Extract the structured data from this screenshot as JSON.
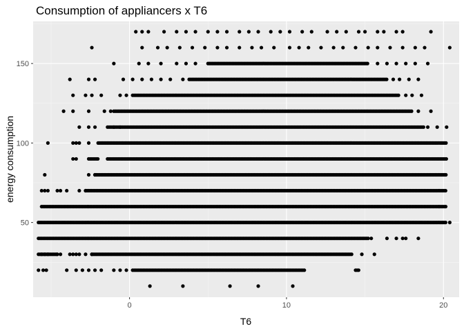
{
  "chart_data": {
    "type": "scatter",
    "title": "Consumption of appliancers x T6",
    "xlabel": "T6",
    "ylabel": "energy consumption",
    "xlim": [
      -6.14,
      21.0
    ],
    "ylim": [
      3.0,
      176.5
    ],
    "x_ticks": [
      0,
      10,
      20
    ],
    "x_tick_labels": [
      "0",
      "10",
      "20"
    ],
    "y_ticks": [
      50,
      100,
      150
    ],
    "y_tick_labels": [
      "50",
      "100",
      "150"
    ],
    "grid": true,
    "legend": "none",
    "point_color": "#000000",
    "panel_background": "#ebebeb",
    "series": [
      {
        "name": "",
        "bands": [
          {
            "y": 10,
            "x": [
              1.3,
              3.4,
              6.4,
              8.2,
              10.4
            ]
          },
          {
            "y": 20,
            "x": [
              -5.8,
              -5.5,
              -5.3,
              -4.0,
              -3.4,
              -3.0,
              -2.6,
              -2.2,
              -1.8,
              -1.0,
              -0.6,
              -0.2
            ],
            "runs": [
              [
                0.2,
                11.2
              ],
              [
                14.4,
                14.6
              ]
            ]
          },
          {
            "y": 30,
            "x": [
              -5.6,
              -5.4,
              -5.2,
              -4.6,
              -4.4,
              -3.8,
              -3.6,
              -3.4,
              -3.2,
              -2.8,
              -2.4
            ],
            "runs": [
              [
                -5.8,
                -4.6
              ],
              [
                -2.4,
                14.2
              ]
            ],
            "extra_x": [
              14.8,
              15.6
            ]
          },
          {
            "y": 40,
            "x": [
              15.4,
              16.4,
              17.0,
              17.4,
              17.6,
              18.4
            ],
            "runs": [
              [
                -5.8,
                15.2
              ]
            ]
          },
          {
            "y": 50,
            "x": [
              20.4
            ],
            "runs": [
              [
                -5.8,
                20.2
              ]
            ]
          },
          {
            "y": 60,
            "runs": [
              [
                -5.6,
                20.2
              ]
            ]
          },
          {
            "y": 70,
            "x": [
              -5.6,
              -5.4,
              -5.2,
              -4.6,
              -4.4,
              -4.0,
              -3.2,
              -2.8
            ],
            "runs": [
              [
                -2.8,
                20.2
              ]
            ]
          },
          {
            "y": 80,
            "x": [
              -5.4,
              -2.6,
              -2.2
            ],
            "runs": [
              [
                -2.2,
                20.2
              ]
            ]
          },
          {
            "y": 90,
            "x": [
              -3.6,
              -3.4
            ],
            "runs": [
              [
                -2.6,
                -2.0
              ],
              [
                -1.4,
                20.2
              ]
            ]
          },
          {
            "y": 100,
            "x": [
              -5.2,
              -3.6,
              -3.4,
              -3.2,
              -2.6
            ],
            "runs": [
              [
                -2.0,
                20.2
              ]
            ]
          },
          {
            "y": 110,
            "x": [
              -3.2,
              -2.6,
              -2.2,
              -1.0,
              -0.6
            ],
            "runs": [
              [
                -1.4,
                18.8
              ]
            ],
            "extra_x": [
              19.0,
              19.6,
              20.2
            ]
          },
          {
            "y": 120,
            "x": [
              -4.2,
              -3.6,
              -2.6,
              -1.6,
              -1.2
            ],
            "runs": [
              [
                -1.0,
                18.0
              ]
            ],
            "extra_x": [
              18.4,
              19.2
            ]
          },
          {
            "y": 130,
            "x": [
              -3.6,
              -2.8,
              -2.4,
              -1.8,
              -0.6,
              -0.2
            ],
            "runs": [
              [
                0.2,
                17.2
              ]
            ],
            "extra_x": [
              17.6,
              18.0,
              18.6
            ]
          },
          {
            "y": 140,
            "x": [
              -3.8,
              -2.6,
              -2.2,
              -0.4,
              0.2,
              0.8,
              1.4,
              2.0,
              2.6,
              3.4
            ],
            "runs": [
              [
                3.8,
                16.4
              ]
            ],
            "extra_x": [
              16.8,
              17.2,
              17.8,
              18.4
            ]
          },
          {
            "y": 150,
            "x": [
              -1.0,
              0.6,
              1.2,
              2.0,
              3.0,
              3.6,
              4.2
            ],
            "runs": [
              [
                5.0,
                15.2
              ]
            ],
            "extra_x": [
              15.8,
              16.4,
              17.0,
              17.6,
              18.2,
              19.0
            ]
          },
          {
            "y": 160,
            "x": [
              -2.4,
              0.8,
              1.8,
              2.4,
              3.2,
              4.0,
              4.8,
              5.6,
              6.2,
              7.0,
              7.8,
              8.4,
              9.2,
              10.2,
              10.8,
              11.4,
              12.2,
              13.0,
              13.6,
              14.4,
              15.2,
              15.8,
              16.6,
              17.4,
              18.2,
              18.8,
              20.4
            ]
          },
          {
            "y": 170,
            "x": [
              0.4,
              0.8,
              1.2,
              2.2,
              3.0,
              3.6,
              4.2,
              5.0,
              5.6,
              6.2,
              7.0,
              7.6,
              8.2,
              9.0,
              9.6,
              10.2,
              11.0,
              11.6,
              12.6,
              13.2,
              13.8,
              14.6,
              15.0,
              15.8,
              16.2,
              17.0,
              17.4,
              19.2
            ]
          }
        ]
      }
    ]
  }
}
